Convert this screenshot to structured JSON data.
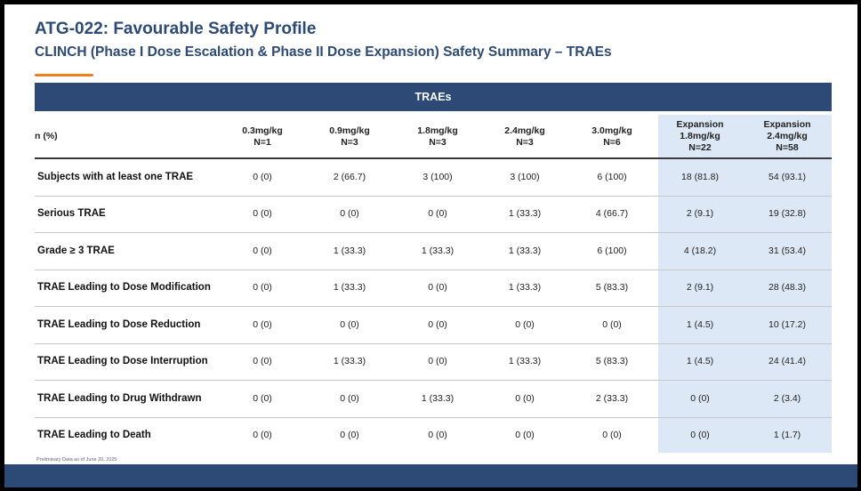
{
  "title": "ATG-022: Favourable Safety Profile",
  "subtitle": "CLINCH (Phase I Dose Escalation & Phase II Dose Expansion) Safety Summary – TRAEs",
  "table": {
    "header": "TRAEs",
    "row_header_label": "n (%)",
    "columns": [
      {
        "line1": "",
        "line2": "0.3mg/kg",
        "line3": "N=1"
      },
      {
        "line1": "",
        "line2": "0.9mg/kg",
        "line3": "N=3"
      },
      {
        "line1": "",
        "line2": "1.8mg/kg",
        "line3": "N=3"
      },
      {
        "line1": "",
        "line2": "2.4mg/kg",
        "line3": "N=3"
      },
      {
        "line1": "",
        "line2": "3.0mg/kg",
        "line3": "N=6"
      },
      {
        "line1": "Expansion",
        "line2": "1.8mg/kg",
        "line3": "N=22"
      },
      {
        "line1": "Expansion",
        "line2": "2.4mg/kg",
        "line3": "N=58"
      }
    ],
    "rows": [
      {
        "label": "Subjects with at least one TRAE",
        "values": [
          "0 (0)",
          "2 (66.7)",
          "3 (100)",
          "3 (100)",
          "6 (100)",
          "18 (81.8)",
          "54 (93.1)"
        ]
      },
      {
        "label": "Serious TRAE",
        "values": [
          "0 (0)",
          "0 (0)",
          "0 (0)",
          "1 (33.3)",
          "4 (66.7)",
          "2 (9.1)",
          "19 (32.8)"
        ]
      },
      {
        "label": "Grade ≥ 3 TRAE",
        "values": [
          "0 (0)",
          "1 (33.3)",
          "1 (33.3)",
          "1 (33.3)",
          "6 (100)",
          "4 (18.2)",
          "31 (53.4)"
        ]
      },
      {
        "label": "TRAE Leading to Dose Modification",
        "values": [
          "0 (0)",
          "1 (33.3)",
          "0 (0)",
          "1 (33.3)",
          "5 (83.3)",
          "2 (9.1)",
          "28 (48.3)"
        ]
      },
      {
        "label": "TRAE Leading to Dose Reduction",
        "values": [
          "0 (0)",
          "0 (0)",
          "0 (0)",
          "0 (0)",
          "0 (0)",
          "1 (4.5)",
          "10 (17.2)"
        ]
      },
      {
        "label": "TRAE Leading to Dose Interruption",
        "values": [
          "0 (0)",
          "1 (33.3)",
          "0 (0)",
          "1 (33.3)",
          "5 (83.3)",
          "1 (4.5)",
          "24 (41.4)"
        ]
      },
      {
        "label": "TRAE Leading to Drug Withdrawn",
        "values": [
          "0 (0)",
          "0 (0)",
          "1 (33.3)",
          "0 (0)",
          "2 (33.3)",
          "0 (0)",
          "2 (3.4)"
        ]
      },
      {
        "label": "TRAE Leading to Death",
        "values": [
          "0 (0)",
          "0 (0)",
          "0 (0)",
          "0 (0)",
          "0 (0)",
          "0 (0)",
          "1 (1.7)"
        ]
      }
    ]
  },
  "footnote": "Preliminary Data as of June 20, 2025",
  "colors": {
    "brand_navy": "#2c4a75",
    "accent_orange": "#f07f22",
    "expansion_highlight": "#dce8f5"
  }
}
